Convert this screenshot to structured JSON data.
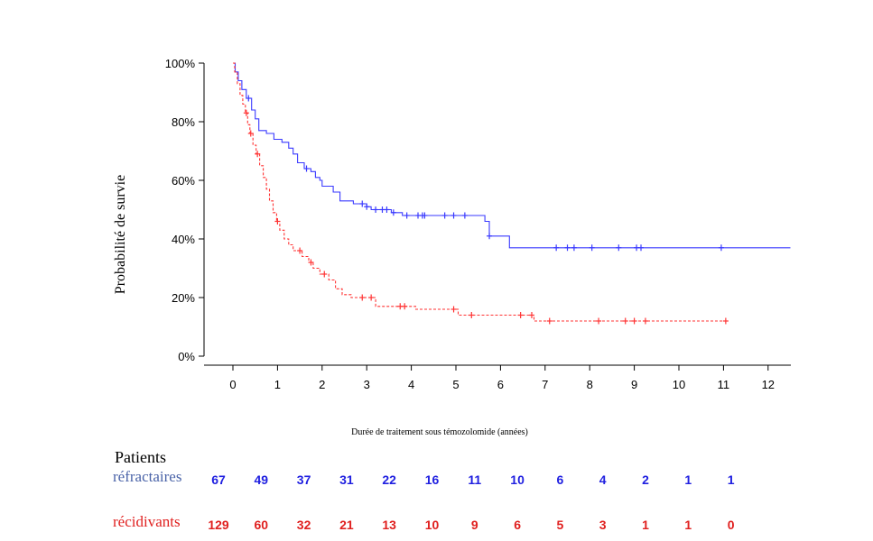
{
  "chart_data": {
    "type": "line",
    "title": "",
    "xlabel": "Durée de traitement sous témozolomide (années)",
    "ylabel": "Probabilité de survie",
    "xlim": [
      -0.65,
      12.5
    ],
    "ylim": [
      0,
      100
    ],
    "x_ticks": [
      0,
      1,
      2,
      3,
      4,
      5,
      6,
      7,
      8,
      9,
      10,
      11,
      12
    ],
    "y_ticks": [
      0,
      20,
      40,
      60,
      80,
      100
    ],
    "y_tick_labels": [
      "0%",
      "20%",
      "40%",
      "60%",
      "80%",
      "100%"
    ],
    "grid": false,
    "series": [
      {
        "name": "réfractaires",
        "color": "#3a3aff",
        "line_style": "solid",
        "steps": [
          [
            0,
            100
          ],
          [
            0.05,
            97
          ],
          [
            0.12,
            94
          ],
          [
            0.2,
            91
          ],
          [
            0.3,
            88
          ],
          [
            0.42,
            84
          ],
          [
            0.5,
            81
          ],
          [
            0.58,
            77
          ],
          [
            0.75,
            76
          ],
          [
            0.92,
            74
          ],
          [
            1.1,
            73
          ],
          [
            1.25,
            71
          ],
          [
            1.35,
            69
          ],
          [
            1.45,
            66
          ],
          [
            1.6,
            64
          ],
          [
            1.75,
            63
          ],
          [
            1.85,
            61
          ],
          [
            1.95,
            60
          ],
          [
            2.0,
            58
          ],
          [
            2.25,
            56
          ],
          [
            2.4,
            53
          ],
          [
            2.7,
            52
          ],
          [
            3.0,
            51
          ],
          [
            3.1,
            50
          ],
          [
            3.55,
            49
          ],
          [
            3.8,
            48
          ],
          [
            5.65,
            46
          ],
          [
            5.75,
            41
          ],
          [
            6.15,
            41
          ],
          [
            6.2,
            37
          ],
          [
            12.5,
            37
          ]
        ],
        "censor_x": [
          0.35,
          1.65,
          2.9,
          3.0,
          3.2,
          3.35,
          3.45,
          3.6,
          3.9,
          4.15,
          4.25,
          4.3,
          4.75,
          4.95,
          5.2,
          5.75,
          7.25,
          7.5,
          7.65,
          8.05,
          8.65,
          9.05,
          9.15,
          10.95
        ]
      },
      {
        "name": "récidivants",
        "color": "#ff3333",
        "line_style": "dashed",
        "steps": [
          [
            0,
            100
          ],
          [
            0.04,
            97
          ],
          [
            0.1,
            93
          ],
          [
            0.16,
            89
          ],
          [
            0.22,
            86
          ],
          [
            0.28,
            83
          ],
          [
            0.33,
            79
          ],
          [
            0.38,
            76
          ],
          [
            0.45,
            72
          ],
          [
            0.52,
            69
          ],
          [
            0.6,
            65
          ],
          [
            0.68,
            61
          ],
          [
            0.75,
            57
          ],
          [
            0.82,
            53
          ],
          [
            0.9,
            49
          ],
          [
            0.98,
            46
          ],
          [
            1.05,
            43
          ],
          [
            1.15,
            40
          ],
          [
            1.25,
            38
          ],
          [
            1.35,
            36
          ],
          [
            1.55,
            34
          ],
          [
            1.7,
            32
          ],
          [
            1.8,
            30
          ],
          [
            1.95,
            28
          ],
          [
            2.15,
            26
          ],
          [
            2.3,
            23
          ],
          [
            2.45,
            21
          ],
          [
            2.65,
            20
          ],
          [
            3.05,
            20
          ],
          [
            3.2,
            17
          ],
          [
            3.9,
            17
          ],
          [
            4.1,
            16
          ],
          [
            5.05,
            14
          ],
          [
            5.2,
            14
          ],
          [
            6.75,
            12
          ],
          [
            11.0,
            12
          ]
        ],
        "censor_x": [
          0.3,
          0.4,
          0.55,
          1.0,
          1.5,
          1.75,
          2.05,
          2.9,
          3.1,
          3.75,
          3.85,
          4.95,
          5.35,
          6.45,
          6.7,
          7.1,
          8.2,
          8.8,
          9.0,
          9.25,
          11.05
        ]
      }
    ]
  },
  "risk_table": {
    "title": "Patients",
    "rows": [
      {
        "label": "réfractaires",
        "label_color": "#4a63a8",
        "value_color": "#1f1fe0",
        "values": [
          "67",
          "49",
          "37",
          "31",
          "22",
          "16",
          "11",
          "10",
          "6",
          "4",
          "2",
          "1",
          "1"
        ]
      },
      {
        "label": "récidivants",
        "label_color": "#e0201f",
        "value_color": "#e0201f",
        "values": [
          "129",
          "60",
          "32",
          "21",
          "13",
          "10",
          "9",
          "6",
          "5",
          "3",
          "1",
          "1",
          "0"
        ]
      }
    ]
  }
}
